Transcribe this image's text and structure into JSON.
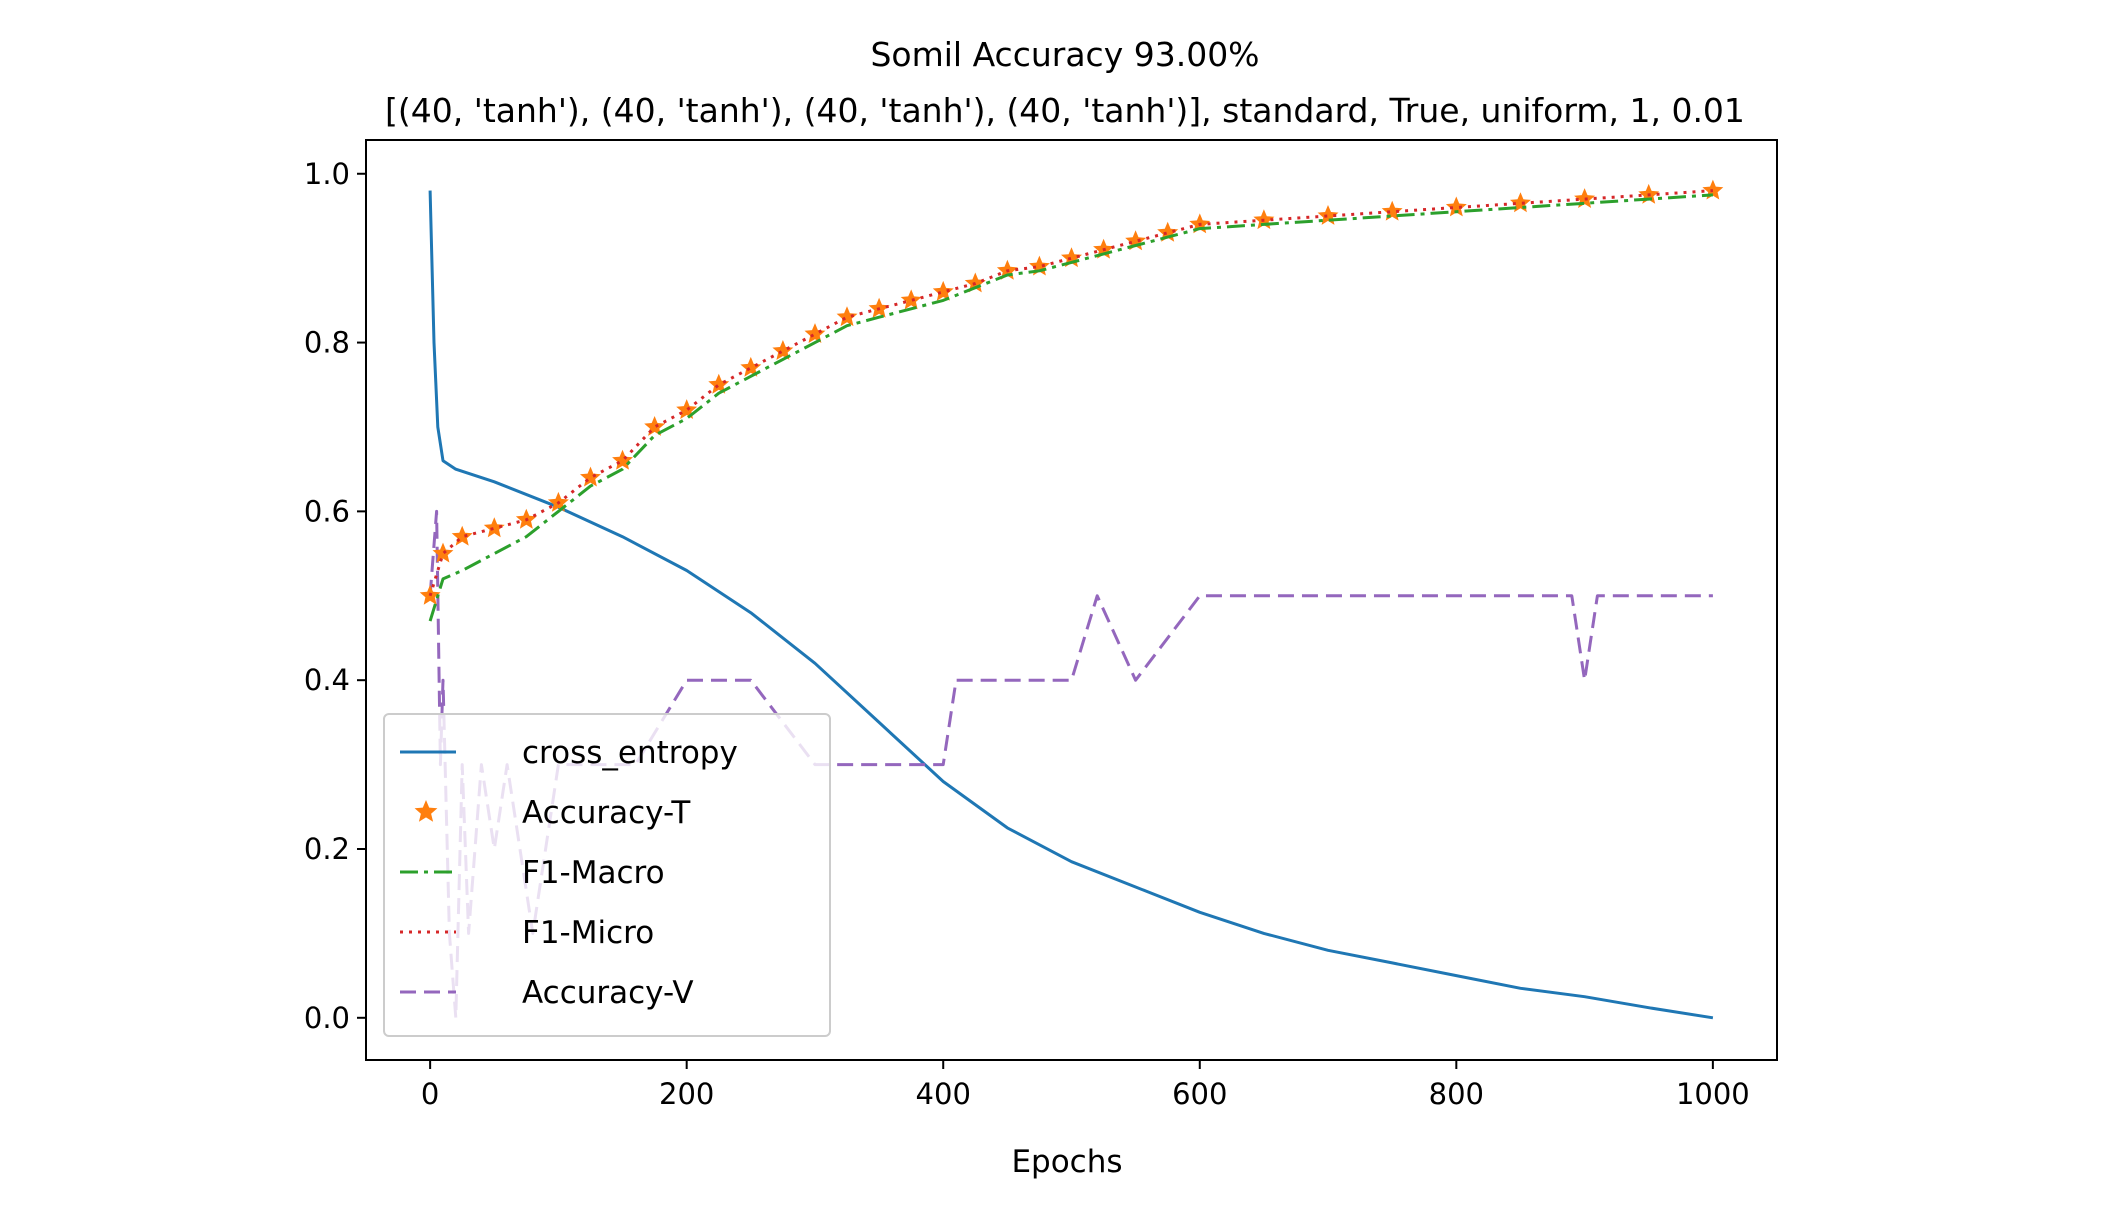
{
  "chart_data": {
    "type": "line",
    "title": "Somil Accuracy 93.00%",
    "subtitle": "[(40, 'tanh'), (40, 'tanh'), (40, 'tanh'), (40, 'tanh')], standard, True, uniform, 1, 0.01",
    "xlabel": "Epochs",
    "ylabel": "",
    "xlim": [
      -50,
      1050
    ],
    "ylim": [
      -0.05,
      1.04
    ],
    "xticks": [
      0,
      200,
      400,
      600,
      800,
      1000
    ],
    "xtick_labels": [
      "0",
      "200",
      "400",
      "600",
      "800",
      "1000"
    ],
    "yticks": [
      0.0,
      0.2,
      0.4,
      0.6,
      0.8,
      1.0
    ],
    "ytick_labels": [
      "0.0",
      "0.2",
      "0.4",
      "0.6",
      "0.8",
      "1.0"
    ],
    "grid": false,
    "legend_position": "lower-left",
    "series": [
      {
        "name": "cross_entropy",
        "color": "#1f77b4",
        "style": "solid",
        "x": [
          0,
          3,
          6,
          10,
          20,
          50,
          100,
          150,
          200,
          250,
          300,
          350,
          400,
          450,
          500,
          550,
          600,
          650,
          700,
          750,
          800,
          850,
          900,
          950,
          1000
        ],
        "y": [
          0.98,
          0.8,
          0.7,
          0.66,
          0.65,
          0.635,
          0.605,
          0.57,
          0.53,
          0.48,
          0.42,
          0.35,
          0.28,
          0.225,
          0.185,
          0.155,
          0.125,
          0.1,
          0.08,
          0.065,
          0.05,
          0.035,
          0.025,
          0.012,
          0.0
        ]
      },
      {
        "name": "Accuracy-T",
        "color": "#ff7f0e",
        "style": "star-markers",
        "x": [
          0,
          10,
          25,
          50,
          75,
          100,
          125,
          150,
          175,
          200,
          225,
          250,
          275,
          300,
          325,
          350,
          375,
          400,
          425,
          450,
          475,
          500,
          525,
          550,
          575,
          600,
          650,
          700,
          750,
          800,
          850,
          900,
          950,
          1000
        ],
        "y": [
          0.5,
          0.55,
          0.57,
          0.58,
          0.59,
          0.61,
          0.64,
          0.66,
          0.7,
          0.72,
          0.75,
          0.77,
          0.79,
          0.81,
          0.83,
          0.84,
          0.85,
          0.86,
          0.87,
          0.885,
          0.89,
          0.9,
          0.91,
          0.92,
          0.93,
          0.94,
          0.945,
          0.95,
          0.955,
          0.96,
          0.965,
          0.97,
          0.975,
          0.98
        ]
      },
      {
        "name": "F1-Macro",
        "color": "#2ca02c",
        "style": "dash-dot",
        "x": [
          0,
          10,
          25,
          50,
          75,
          100,
          125,
          150,
          175,
          200,
          225,
          250,
          275,
          300,
          325,
          350,
          375,
          400,
          425,
          450,
          475,
          500,
          525,
          550,
          575,
          600,
          650,
          700,
          750,
          800,
          850,
          900,
          950,
          1000
        ],
        "y": [
          0.47,
          0.52,
          0.53,
          0.55,
          0.57,
          0.6,
          0.63,
          0.65,
          0.69,
          0.71,
          0.74,
          0.76,
          0.78,
          0.8,
          0.82,
          0.83,
          0.84,
          0.85,
          0.865,
          0.88,
          0.885,
          0.895,
          0.905,
          0.915,
          0.925,
          0.935,
          0.94,
          0.945,
          0.95,
          0.955,
          0.96,
          0.965,
          0.97,
          0.975
        ]
      },
      {
        "name": "F1-Micro",
        "color": "#d62728",
        "style": "dotted",
        "x": [
          0,
          10,
          25,
          50,
          75,
          100,
          125,
          150,
          175,
          200,
          225,
          250,
          275,
          300,
          325,
          350,
          375,
          400,
          425,
          450,
          475,
          500,
          525,
          550,
          575,
          600,
          650,
          700,
          750,
          800,
          850,
          900,
          950,
          1000
        ],
        "y": [
          0.5,
          0.55,
          0.57,
          0.58,
          0.59,
          0.61,
          0.64,
          0.66,
          0.7,
          0.72,
          0.75,
          0.77,
          0.79,
          0.81,
          0.83,
          0.84,
          0.85,
          0.86,
          0.87,
          0.885,
          0.89,
          0.9,
          0.91,
          0.92,
          0.93,
          0.94,
          0.945,
          0.95,
          0.955,
          0.96,
          0.965,
          0.97,
          0.975,
          0.98
        ]
      },
      {
        "name": "Accuracy-V",
        "color": "#9467bd",
        "style": "dashed",
        "x": [
          0,
          5,
          8,
          10,
          15,
          20,
          25,
          30,
          40,
          50,
          60,
          80,
          100,
          150,
          160,
          200,
          250,
          300,
          310,
          400,
          410,
          420,
          500,
          520,
          550,
          600,
          610,
          700,
          800,
          890,
          900,
          910,
          1000
        ],
        "y": [
          0.5,
          0.6,
          0.3,
          0.4,
          0.1,
          0.0,
          0.3,
          0.1,
          0.3,
          0.2,
          0.3,
          0.1,
          0.3,
          0.3,
          0.3,
          0.4,
          0.4,
          0.3,
          0.3,
          0.3,
          0.4,
          0.4,
          0.4,
          0.5,
          0.4,
          0.5,
          0.5,
          0.5,
          0.5,
          0.5,
          0.4,
          0.5,
          0.5
        ]
      }
    ]
  }
}
